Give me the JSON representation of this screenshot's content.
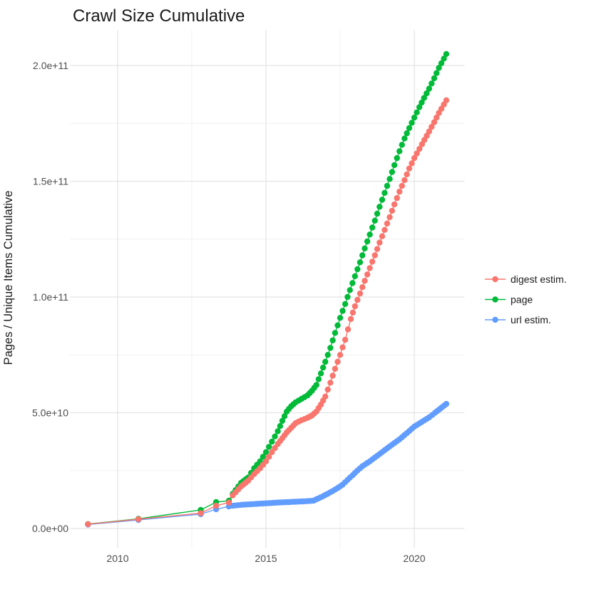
{
  "title": "Crawl Size Cumulative",
  "y_axis_title": "Pages / Unique Items Cumulative",
  "background": "#FFFFFF",
  "colors": {
    "digest_estim": "#F8766D",
    "page": "#00BA38",
    "url_estim": "#619CFF",
    "grid_major": "#E3E3E3",
    "grid_minor": "#F0F0F0",
    "tick_text": "#4D4D4D",
    "title_text": "#1A1A1A"
  },
  "x_axis": {
    "tick_labels": [
      "2010",
      "2015",
      "2020"
    ],
    "tick_years": [
      2010,
      2015,
      2020
    ],
    "minor_years": [
      2012.5,
      2017.5
    ]
  },
  "y_axis": {
    "tick_labels": [
      "0.0e+00",
      "5.0e+10",
      "1.0e+11",
      "1.5e+11",
      "2.0e+11"
    ],
    "tick_values_e9": [
      0,
      50,
      100,
      150,
      200
    ],
    "minor_values_e9": [
      25,
      75,
      125,
      175
    ]
  },
  "legend": {
    "items": [
      {
        "id": "digest-estim",
        "label": "digest estim.",
        "color": "#F8766D"
      },
      {
        "id": "page",
        "label": "page",
        "color": "#00BA38"
      },
      {
        "id": "url-estim",
        "label": "url estim.",
        "color": "#619CFF"
      }
    ]
  },
  "chart_data": {
    "type": "scatter",
    "title": "Crawl Size Cumulative",
    "xlabel": "",
    "ylabel": "Pages / Unique Items Cumulative",
    "value_unit": "billions of pages (1e9)",
    "x_unit": "year (decimal)",
    "xlim": [
      2008.4,
      2021.7
    ],
    "ylim_e9": [
      -8,
      215
    ],
    "grid": true,
    "legend_position": "right",
    "point_cadence_note": "sparse crawls 2009-2013, roughly monthly points 2014-2021 (rendered by interpolation between listed waypoints)",
    "draw_order": [
      "page",
      "url estim.",
      "digest estim."
    ],
    "series": [
      {
        "name": "page",
        "color": "#00BA38",
        "points": [
          [
            2009.0,
            1.9
          ],
          [
            2010.7,
            4.2
          ],
          [
            2012.8,
            8.0
          ],
          [
            2013.32,
            11.4
          ],
          [
            2013.75,
            12.0
          ],
          [
            2013.88,
            15.0
          ],
          [
            2014.16,
            19.7
          ],
          [
            2014.4,
            22.0
          ],
          [
            2014.6,
            26.0
          ],
          [
            2014.8,
            29.0
          ],
          [
            2015.0,
            33.0
          ],
          [
            2015.2,
            37.5
          ],
          [
            2015.4,
            42.0
          ],
          [
            2015.55,
            46.5
          ],
          [
            2015.7,
            50.5
          ],
          [
            2015.85,
            52.8
          ],
          [
            2016.0,
            54.5
          ],
          [
            2016.2,
            56.0
          ],
          [
            2016.4,
            57.5
          ],
          [
            2016.55,
            59.5
          ],
          [
            2016.7,
            62.0
          ],
          [
            2016.85,
            67.0
          ],
          [
            2017.0,
            72.0
          ],
          [
            2017.17,
            78.0
          ],
          [
            2017.33,
            84.5
          ],
          [
            2017.5,
            91.0
          ],
          [
            2017.67,
            97.0
          ],
          [
            2017.83,
            103.0
          ],
          [
            2018.0,
            109.0
          ],
          [
            2018.17,
            115.0
          ],
          [
            2018.33,
            121.0
          ],
          [
            2018.5,
            127.0
          ],
          [
            2018.67,
            133.0
          ],
          [
            2018.83,
            139.0
          ],
          [
            2019.0,
            145.0
          ],
          [
            2019.17,
            151.0
          ],
          [
            2019.33,
            157.0
          ],
          [
            2019.5,
            163.0
          ],
          [
            2019.67,
            168.5
          ],
          [
            2019.83,
            173.0
          ],
          [
            2020.0,
            177.5
          ],
          [
            2020.17,
            182.0
          ],
          [
            2020.33,
            186.0
          ],
          [
            2020.5,
            190.0
          ],
          [
            2020.67,
            194.5
          ],
          [
            2020.83,
            199.0
          ],
          [
            2021.08,
            205.0
          ]
        ]
      },
      {
        "name": "digest estim.",
        "color": "#F8766D",
        "points": [
          [
            2009.0,
            1.85
          ],
          [
            2010.7,
            4.0
          ],
          [
            2012.8,
            6.6
          ],
          [
            2013.32,
            9.8
          ],
          [
            2013.75,
            11.2
          ],
          [
            2013.88,
            14.3
          ],
          [
            2014.16,
            18.2
          ],
          [
            2014.4,
            20.6
          ],
          [
            2014.6,
            23.5
          ],
          [
            2014.8,
            26.0
          ],
          [
            2015.0,
            29.0
          ],
          [
            2015.2,
            33.0
          ],
          [
            2015.4,
            36.5
          ],
          [
            2015.55,
            39.0
          ],
          [
            2015.7,
            41.5
          ],
          [
            2015.85,
            43.5
          ],
          [
            2016.0,
            45.5
          ],
          [
            2016.2,
            46.8
          ],
          [
            2016.4,
            47.8
          ],
          [
            2016.55,
            48.8
          ],
          [
            2016.7,
            50.5
          ],
          [
            2016.85,
            53.5
          ],
          [
            2017.0,
            57.0
          ],
          [
            2017.17,
            63.0
          ],
          [
            2017.33,
            69.0
          ],
          [
            2017.5,
            75.0
          ],
          [
            2017.67,
            81.5
          ],
          [
            2017.86,
            90.5
          ],
          [
            2018.0,
            96.0
          ],
          [
            2018.17,
            101.5
          ],
          [
            2018.33,
            107.0
          ],
          [
            2018.5,
            112.5
          ],
          [
            2018.67,
            118.0
          ],
          [
            2018.83,
            123.5
          ],
          [
            2019.0,
            129.0
          ],
          [
            2019.17,
            134.5
          ],
          [
            2019.33,
            140.0
          ],
          [
            2019.5,
            145.5
          ],
          [
            2019.67,
            150.5
          ],
          [
            2019.83,
            155.5
          ],
          [
            2020.0,
            160.0
          ],
          [
            2020.26,
            166.0
          ],
          [
            2020.5,
            171.5
          ],
          [
            2020.67,
            175.5
          ],
          [
            2020.83,
            179.5
          ],
          [
            2021.08,
            185.0
          ]
        ]
      },
      {
        "name": "url estim.",
        "color": "#619CFF",
        "points": [
          [
            2009.0,
            1.7
          ],
          [
            2010.7,
            3.7
          ],
          [
            2012.8,
            6.2
          ],
          [
            2013.32,
            8.3
          ],
          [
            2013.75,
            9.5
          ],
          [
            2013.88,
            9.8
          ],
          [
            2014.16,
            10.2
          ],
          [
            2014.4,
            10.4
          ],
          [
            2014.67,
            10.6
          ],
          [
            2014.92,
            10.8
          ],
          [
            2015.17,
            11.0
          ],
          [
            2015.42,
            11.2
          ],
          [
            2015.67,
            11.35
          ],
          [
            2015.92,
            11.5
          ],
          [
            2016.17,
            11.65
          ],
          [
            2016.42,
            11.8
          ],
          [
            2016.6,
            12.0
          ],
          [
            2016.75,
            12.9
          ],
          [
            2016.92,
            13.9
          ],
          [
            2017.08,
            15.0
          ],
          [
            2017.25,
            16.2
          ],
          [
            2017.42,
            17.5
          ],
          [
            2017.58,
            18.9
          ],
          [
            2017.75,
            21.0
          ],
          [
            2017.92,
            23.0
          ],
          [
            2018.08,
            25.0
          ],
          [
            2018.25,
            26.9
          ],
          [
            2018.5,
            29.0
          ],
          [
            2018.75,
            31.4
          ],
          [
            2019.0,
            33.8
          ],
          [
            2019.25,
            36.2
          ],
          [
            2019.5,
            38.5
          ],
          [
            2019.75,
            41.2
          ],
          [
            2020.0,
            44.0
          ],
          [
            2020.25,
            46.0
          ],
          [
            2020.5,
            48.0
          ],
          [
            2020.7,
            50.0
          ],
          [
            2020.85,
            51.5
          ],
          [
            2021.08,
            53.8
          ]
        ]
      }
    ]
  }
}
